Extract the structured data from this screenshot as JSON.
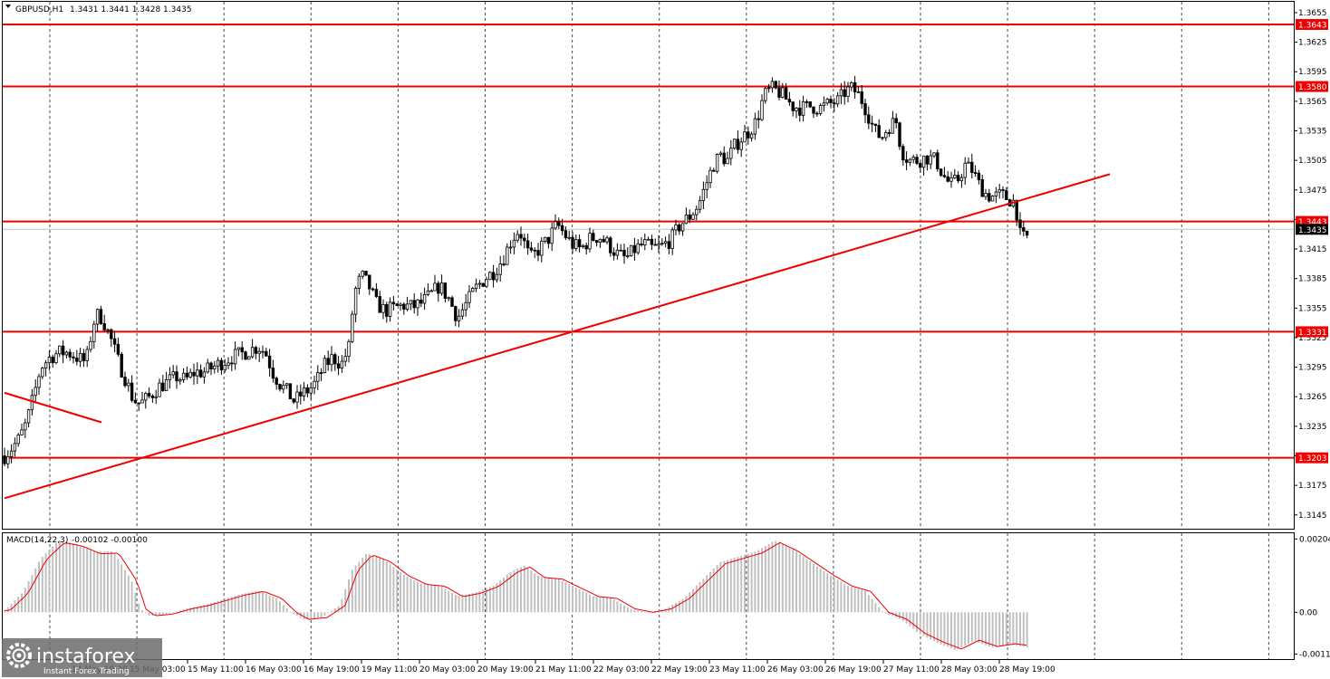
{
  "header": {
    "symbol": "GBPUSD,H1",
    "ohlc": "1.3431 1.3441 1.3428 1.3435"
  },
  "macd_header": {
    "label": "MACD(14,22,3)",
    "values": "-0.00102 -0.00100"
  },
  "watermark": {
    "brand": "instaforex",
    "tagline": "Instant Forex Trading"
  },
  "colors": {
    "bullish": "#000000",
    "bearish": "#000000",
    "level": "#ee0000",
    "trendline": "#ee0000",
    "grid": "#000000",
    "histogram": "#c0c0c0",
    "signal": "#ee0000",
    "bid_line": "#c0c0c0",
    "axis_text": "#000000"
  },
  "chart_data": [
    {
      "type": "candlestick",
      "name": "GBPUSD,H1",
      "ylim": [
        1.3131,
        1.3666
      ],
      "y_ticks": [
        "1.3655",
        "1.3625",
        "1.3595",
        "1.3565",
        "1.3535",
        "1.3505",
        "1.3475",
        "1.3445",
        "1.3415",
        "1.3385",
        "1.3355",
        "1.3325",
        "1.3295",
        "1.3265",
        "1.3235",
        "1.3205",
        "1.3175",
        "1.3145"
      ],
      "x_tick_labels": [
        "14 May 19:00",
        "15 May 03:00",
        "15 May 11:00",
        "16 May 03:00",
        "16 May 19:00",
        "19 May 11:00",
        "20 May 03:00",
        "20 May 19:00",
        "21 May 11:00",
        "22 May 03:00",
        "22 May 19:00",
        "23 May 11:00",
        "26 May 03:00",
        "26 May 19:00",
        "27 May 11:00",
        "28 May 03:00",
        "28 May 19:00"
      ],
      "grid": "vertical dotted",
      "current_price": "1.3435",
      "levels": [
        {
          "label": "1.3643",
          "value": 1.3643
        },
        {
          "label": "1.3580",
          "value": 1.358
        },
        {
          "label": "1.3443",
          "value": 1.3443
        },
        {
          "label": "1.3331",
          "value": 1.3331
        },
        {
          "label": "1.3203",
          "value": 1.3203
        }
      ],
      "trendlines": [
        {
          "points": [
            [
              0,
              1.3162
            ],
            [
              1220,
              1.3491
            ]
          ]
        },
        {
          "points": [
            [
              0,
              1.3269
            ],
            [
              107,
              1.3239
            ]
          ]
        }
      ],
      "price_path": [
        [
          0,
          1.3205
        ],
        [
          8,
          1.3213
        ],
        [
          16,
          1.3222
        ],
        [
          24,
          1.3238
        ],
        [
          32,
          1.3265
        ],
        [
          40,
          1.3295
        ],
        [
          50,
          1.3305
        ],
        [
          60,
          1.331
        ],
        [
          70,
          1.331
        ],
        [
          80,
          1.3305
        ],
        [
          90,
          1.33
        ],
        [
          98,
          1.334
        ],
        [
          104,
          1.335
        ],
        [
          110,
          1.334
        ],
        [
          118,
          1.3322
        ],
        [
          126,
          1.33
        ],
        [
          134,
          1.3282
        ],
        [
          142,
          1.3262
        ],
        [
          150,
          1.3258
        ],
        [
          160,
          1.3265
        ],
        [
          170,
          1.3275
        ],
        [
          180,
          1.328
        ],
        [
          190,
          1.3285
        ],
        [
          200,
          1.3282
        ],
        [
          210,
          1.329
        ],
        [
          220,
          1.329
        ],
        [
          230,
          1.3295
        ],
        [
          240,
          1.33
        ],
        [
          250,
          1.3305
        ],
        [
          260,
          1.3308
        ],
        [
          270,
          1.3312
        ],
        [
          280,
          1.3316
        ],
        [
          288,
          1.331
        ],
        [
          296,
          1.329
        ],
        [
          304,
          1.3278
        ],
        [
          312,
          1.327
        ],
        [
          320,
          1.326
        ],
        [
          328,
          1.3268
        ],
        [
          336,
          1.3272
        ],
        [
          344,
          1.328
        ],
        [
          352,
          1.3295
        ],
        [
          362,
          1.3305
        ],
        [
          372,
          1.3298
        ],
        [
          380,
          1.3315
        ],
        [
          386,
          1.337
        ],
        [
          394,
          1.3388
        ],
        [
          402,
          1.3378
        ],
        [
          410,
          1.336
        ],
        [
          420,
          1.3352
        ],
        [
          430,
          1.3355
        ],
        [
          440,
          1.3358
        ],
        [
          450,
          1.3356
        ],
        [
          460,
          1.336
        ],
        [
          470,
          1.3368
        ],
        [
          480,
          1.3378
        ],
        [
          490,
          1.3365
        ],
        [
          500,
          1.3345
        ],
        [
          510,
          1.336
        ],
        [
          520,
          1.3375
        ],
        [
          530,
          1.3385
        ],
        [
          540,
          1.3392
        ],
        [
          550,
          1.3405
        ],
        [
          560,
          1.3425
        ],
        [
          568,
          1.3435
        ],
        [
          574,
          1.342
        ],
        [
          580,
          1.3405
        ],
        [
          590,
          1.3415
        ],
        [
          600,
          1.3425
        ],
        [
          610,
          1.344
        ],
        [
          618,
          1.343
        ],
        [
          626,
          1.342
        ],
        [
          636,
          1.3415
        ],
        [
          646,
          1.3425
        ],
        [
          656,
          1.3428
        ],
        [
          666,
          1.342
        ],
        [
          676,
          1.341
        ],
        [
          686,
          1.3405
        ],
        [
          696,
          1.3415
        ],
        [
          706,
          1.342
        ],
        [
          716,
          1.3415
        ],
        [
          726,
          1.3418
        ],
        [
          736,
          1.3425
        ],
        [
          746,
          1.344
        ],
        [
          756,
          1.3448
        ],
        [
          766,
          1.346
        ],
        [
          774,
          1.348
        ],
        [
          782,
          1.35
        ],
        [
          790,
          1.351
        ],
        [
          798,
          1.3505
        ],
        [
          806,
          1.352
        ],
        [
          814,
          1.3528
        ],
        [
          822,
          1.3535
        ],
        [
          830,
          1.3545
        ],
        [
          838,
          1.357
        ],
        [
          846,
          1.3578
        ],
        [
          854,
          1.3575
        ],
        [
          862,
          1.3568
        ],
        [
          870,
          1.356
        ],
        [
          880,
          1.3558
        ],
        [
          890,
          1.356
        ],
        [
          900,
          1.3558
        ],
        [
          910,
          1.3562
        ],
        [
          920,
          1.3565
        ],
        [
          928,
          1.3575
        ],
        [
          936,
          1.3578
        ],
        [
          944,
          1.357
        ],
        [
          952,
          1.3555
        ],
        [
          960,
          1.3535
        ],
        [
          968,
          1.3528
        ],
        [
          976,
          1.354
        ],
        [
          984,
          1.3545
        ],
        [
          990,
          1.3515
        ],
        [
          998,
          1.3505
        ],
        [
          1008,
          1.3505
        ],
        [
          1018,
          1.3508
        ],
        [
          1028,
          1.3505
        ],
        [
          1036,
          1.349
        ],
        [
          1044,
          1.348
        ],
        [
          1052,
          1.3485
        ],
        [
          1060,
          1.35
        ],
        [
          1068,
          1.3495
        ],
        [
          1076,
          1.348
        ],
        [
          1084,
          1.347
        ],
        [
          1092,
          1.3468
        ],
        [
          1100,
          1.347
        ],
        [
          1108,
          1.3466
        ],
        [
          1116,
          1.3462
        ],
        [
          1120,
          1.343
        ],
        [
          1126,
          1.3425
        ],
        [
          1132,
          1.343
        ],
        [
          1136,
          1.3435
        ]
      ]
    },
    {
      "type": "bar",
      "name": "MACD(14,22,3)",
      "ylim": [
        -0.0013,
        0.0022
      ],
      "y_ticks": [
        "0.00204",
        "0.00",
        "-0.00116"
      ],
      "macd_path": [
        [
          0,
          5e-05
        ],
        [
          20,
          0.00055
        ],
        [
          40,
          0.0015
        ],
        [
          60,
          0.002
        ],
        [
          80,
          0.0019
        ],
        [
          100,
          0.00168
        ],
        [
          120,
          0.0017
        ],
        [
          140,
          0.0009
        ],
        [
          150,
          0.0001
        ],
        [
          160,
          -0.0001
        ],
        [
          180,
          -5e-05
        ],
        [
          200,
          0.0001
        ],
        [
          220,
          0.0002
        ],
        [
          240,
          0.00035
        ],
        [
          260,
          0.0005
        ],
        [
          280,
          0.0006
        ],
        [
          300,
          0.0004
        ],
        [
          316,
          0.0
        ],
        [
          330,
          -0.0002
        ],
        [
          350,
          -0.00015
        ],
        [
          370,
          0.0002
        ],
        [
          384,
          0.0012
        ],
        [
          400,
          0.00165
        ],
        [
          420,
          0.00145
        ],
        [
          440,
          0.00105
        ],
        [
          460,
          0.0008
        ],
        [
          480,
          0.00075
        ],
        [
          500,
          0.00045
        ],
        [
          520,
          0.00055
        ],
        [
          540,
          0.00075
        ],
        [
          560,
          0.00115
        ],
        [
          574,
          0.0013
        ],
        [
          590,
          0.001
        ],
        [
          610,
          0.00095
        ],
        [
          630,
          0.0007
        ],
        [
          650,
          0.00045
        ],
        [
          670,
          0.0004
        ],
        [
          690,
          0.0001
        ],
        [
          710,
          0.0
        ],
        [
          730,
          0.0001
        ],
        [
          750,
          0.0004
        ],
        [
          770,
          0.0009
        ],
        [
          790,
          0.0014
        ],
        [
          810,
          0.00155
        ],
        [
          830,
          0.0017
        ],
        [
          850,
          0.002
        ],
        [
          870,
          0.00175
        ],
        [
          890,
          0.0014
        ],
        [
          910,
          0.00105
        ],
        [
          930,
          0.00075
        ],
        [
          950,
          0.0006
        ],
        [
          970,
          0.0
        ],
        [
          990,
          -0.0002
        ],
        [
          1010,
          -0.0006
        ],
        [
          1030,
          -0.00085
        ],
        [
          1050,
          -0.00105
        ],
        [
          1070,
          -0.0008
        ],
        [
          1090,
          -0.00098
        ],
        [
          1110,
          -0.0009
        ],
        [
          1125,
          -0.00095
        ],
        [
          1136,
          -0.00102
        ]
      ]
    }
  ]
}
